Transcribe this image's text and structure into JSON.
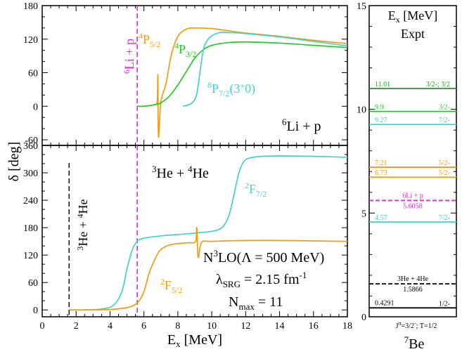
{
  "chart_data": [
    {
      "type": "line",
      "panel": "top",
      "title": "6Li + p",
      "xlim": [
        0,
        18
      ],
      "ylim": [
        -70,
        180
      ],
      "yticks": [
        -60,
        0,
        60,
        120,
        180
      ],
      "threshold": {
        "x": 5.6058,
        "label": "6Li + p",
        "color": "#e81ee8"
      },
      "labels": {
        "p52": {
          "text": "4P5/2",
          "color": "#f39c12"
        },
        "p32": {
          "text": "4P3/2",
          "color": "#22cc22"
        },
        "p72": {
          "text": "8P7/2(3+0)",
          "color": "#3fd3c8"
        },
        "system": "6Li + p"
      },
      "series": [
        {
          "name": "4P5/2",
          "color": "#f39c12",
          "x": [
            5.6,
            6.0,
            6.5,
            6.78,
            6.82,
            6.86,
            7.0,
            7.3,
            7.6,
            8.0,
            8.5,
            9.0,
            10,
            11,
            12,
            14,
            16,
            18
          ],
          "y": [
            0,
            0,
            2,
            8,
            55,
            -55,
            8,
            40,
            90,
            125,
            138,
            140,
            139,
            135,
            131,
            125,
            118,
            112
          ]
        },
        {
          "name": "4P3/2",
          "color": "#22cc22",
          "x": [
            5.6,
            6.0,
            6.5,
            6.8,
            7.0,
            7.5,
            8.0,
            8.5,
            9.0,
            9.5,
            10,
            11,
            12,
            14,
            16,
            18
          ],
          "y": [
            0,
            0,
            2,
            4,
            6,
            18,
            38,
            62,
            86,
            101,
            109,
            114,
            115,
            113,
            109,
            105
          ]
        },
        {
          "name": "8P7/2(3+0)",
          "color": "#3fd3c8",
          "x": [
            8.3,
            8.8,
            9.1,
            9.3,
            9.5,
            9.7,
            10,
            10.5,
            11,
            12,
            14,
            16,
            18
          ],
          "y": [
            0,
            5,
            20,
            60,
            100,
            116,
            126,
            132,
            132,
            130,
            124,
            116,
            108
          ]
        }
      ]
    },
    {
      "type": "line",
      "panel": "bottom",
      "title": "3He + 4He",
      "xlabel": "Ex [MeV]",
      "ylabel": "δ [deg]",
      "xlim": [
        0,
        18
      ],
      "ylim": [
        -15,
        360
      ],
      "xticks": [
        0,
        2,
        4,
        6,
        8,
        10,
        12,
        14,
        16,
        18
      ],
      "yticks": [
        0,
        60,
        120,
        180,
        240,
        300,
        360
      ],
      "threshold": {
        "x": 1.5866,
        "label": "3He + 4He",
        "color": "#000000"
      },
      "method": {
        "line1": "N3LO(Λ = 500 MeV)",
        "line2": "λSRG = 2.15 fm-1",
        "line3": "Nmax = 11"
      },
      "labels": {
        "f72": {
          "text": "2F7/2",
          "color": "#3fd3c8"
        },
        "f52": {
          "text": "2F5/2",
          "color": "#f39c12"
        },
        "system": "3He + 4He"
      },
      "series": [
        {
          "name": "2F7/2",
          "color": "#3fd3c8",
          "x": [
            1.6,
            2.5,
            3.5,
            4.2,
            4.7,
            5.0,
            5.3,
            5.6,
            6.0,
            7.0,
            8.0,
            9.0,
            10.0,
            10.6,
            11.0,
            11.3,
            11.6,
            11.9,
            12.3,
            13,
            14,
            16,
            18
          ],
          "y": [
            0,
            0,
            2,
            10,
            40,
            90,
            130,
            150,
            157,
            162,
            165,
            168,
            172,
            180,
            205,
            250,
            300,
            325,
            333,
            336,
            337,
            336,
            334
          ]
        },
        {
          "name": "2F5/2",
          "color": "#f39c12",
          "x": [
            1.6,
            3,
            4,
            5,
            5.6,
            6.0,
            6.3,
            6.7,
            7.0,
            7.5,
            8.0,
            8.6,
            9.05,
            9.12,
            9.2,
            9.4,
            10,
            12,
            14,
            16,
            18
          ],
          "y": [
            0,
            0,
            1,
            5,
            15,
            40,
            80,
            115,
            132,
            142,
            145,
            147,
            150,
            180,
            115,
            148,
            150,
            152,
            152,
            151,
            150
          ]
        }
      ]
    },
    {
      "type": "level-scheme",
      "title": "Ex [MeV]",
      "subtitle": "Expt",
      "nucleus": "7Be",
      "footer": "Jπ=3/2-; T=1/2",
      "ylim": [
        0,
        15
      ],
      "yticks": [
        0,
        5,
        10,
        15
      ],
      "levels": [
        {
          "energy": 11.01,
          "label": "11.01",
          "jpi": "3/2-; 3/2",
          "color": "#1f9e1f",
          "style": "solid"
        },
        {
          "energy": 9.9,
          "label": "9.9",
          "jpi": "3/2-",
          "color": "#22cc22",
          "style": "solid"
        },
        {
          "energy": 9.27,
          "label": "9.27",
          "jpi": "7/2-",
          "color": "#3fd3c8",
          "style": "solid"
        },
        {
          "energy": 7.21,
          "label": "7.21",
          "jpi": "5/2-",
          "color": "#f39c12",
          "style": "solid"
        },
        {
          "energy": 6.73,
          "label": "6.73",
          "jpi": "5/2-",
          "color": "#f39c12",
          "style": "solid"
        },
        {
          "energy": 5.6058,
          "label": "5.6058",
          "jpi": "6Li + p",
          "color": "#e81ee8",
          "style": "dashed"
        },
        {
          "energy": 4.57,
          "label": "4.57",
          "jpi": "7/2-",
          "color": "#3fd3c8",
          "style": "solid"
        },
        {
          "energy": 1.5866,
          "label": "1.5866",
          "jpi": "3He + 4He",
          "color": "#000000",
          "style": "dashed"
        },
        {
          "energy": 0.4291,
          "label": "0.4291",
          "jpi": "1/2-",
          "color": "#000000",
          "style": "solid"
        }
      ]
    }
  ]
}
